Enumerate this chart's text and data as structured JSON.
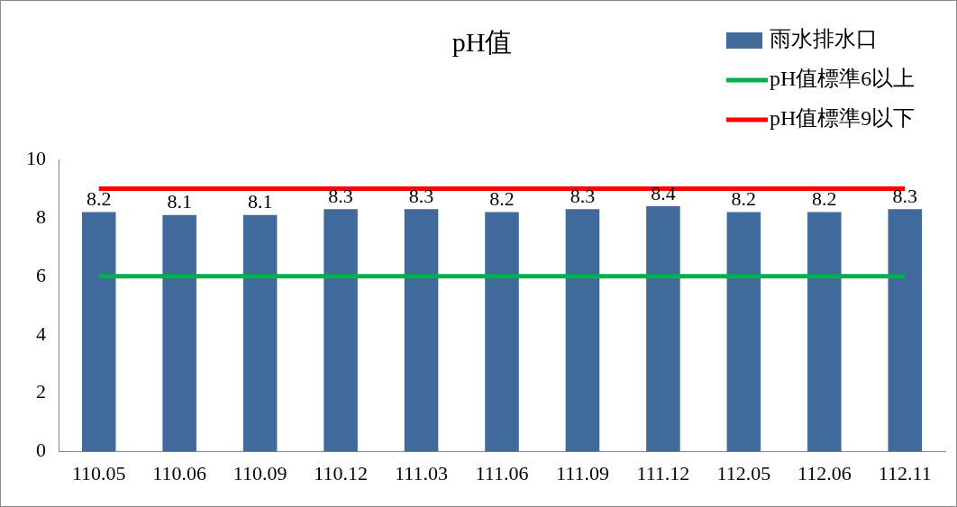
{
  "chart_data": {
    "type": "bar",
    "title": "pH值",
    "categories": [
      "110.05",
      "110.06",
      "110.09",
      "110.12",
      "111.03",
      "111.06",
      "111.09",
      "111.12",
      "112.05",
      "112.06",
      "112.11"
    ],
    "series": [
      {
        "name": "雨水排水口",
        "color": "#416a9c",
        "values": [
          8.2,
          8.1,
          8.1,
          8.3,
          8.3,
          8.2,
          8.3,
          8.4,
          8.2,
          8.2,
          8.3
        ],
        "value_labels": [
          "8.2",
          "8.1",
          "8.1",
          "8.3",
          "8.3",
          "8.2",
          "8.3",
          "8.4",
          "8.2",
          "8.2",
          "8.3"
        ]
      },
      {
        "name": "pH值標準6以上",
        "type": "line",
        "color": "#00b050",
        "values": [
          6,
          6,
          6,
          6,
          6,
          6,
          6,
          6,
          6,
          6,
          6
        ]
      },
      {
        "name": "pH值標準9以下",
        "type": "line",
        "color": "#ff0000",
        "values": [
          9,
          9,
          9,
          9,
          9,
          9,
          9,
          9,
          9,
          9,
          9
        ]
      }
    ],
    "marker": "none",
    "line_style": "solid",
    "ylim": [
      0,
      10
    ],
    "yticks": [
      0,
      2,
      4,
      6,
      8,
      10
    ],
    "grid": false,
    "legend": "top right"
  }
}
